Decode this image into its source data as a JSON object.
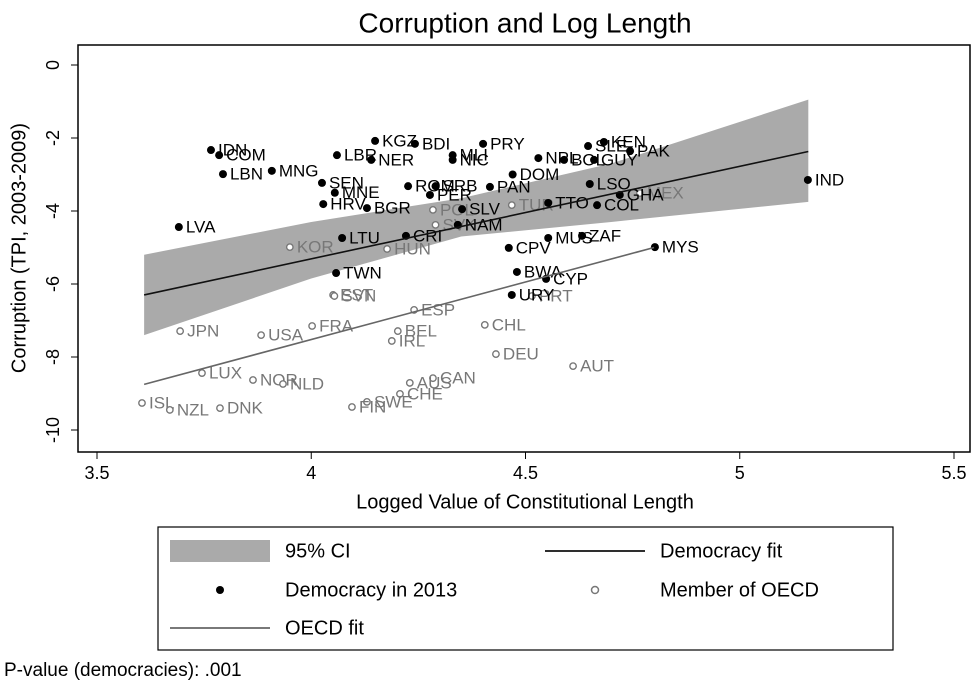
{
  "chart_data": {
    "type": "scatter",
    "title": "Corruption and Log Length",
    "x_label": "Logged Value of Constitutional Length",
    "y_label": "Corruption (TPI, 2003-2009)",
    "note": "P-value (democracies): .001",
    "xlim": [
      3.5,
      5.5
    ],
    "ylim": [
      -10,
      0
    ],
    "xticks": [
      3.5,
      4,
      4.5,
      5,
      5.5
    ],
    "yticks": [
      0,
      -2,
      -4,
      -6,
      -8,
      -10
    ],
    "series": [
      {
        "name": "95% CI",
        "style": "band",
        "color": "#aaaaaa",
        "x": [
          3.61,
          4.0,
          4.35,
          4.7,
          5.16
        ],
        "upper": [
          -5.2,
          -4.3,
          -3.65,
          -2.7,
          -0.95
        ],
        "lower": [
          -7.4,
          -5.85,
          -4.7,
          -4.3,
          -3.75
        ]
      },
      {
        "name": "Democracy fit",
        "style": "line",
        "color": "#111111",
        "x": [
          3.61,
          5.16
        ],
        "values": [
          -6.3,
          -2.37
        ]
      },
      {
        "name": "Democracy in 2013",
        "style": "point",
        "color": "#000000",
        "labels": [
          "IDN",
          "COM",
          "LBN",
          "MNG",
          "LVA",
          "KGZ",
          "BDI",
          "PRY",
          "KEN",
          "PAK",
          "SLE",
          "GUY",
          "BOL",
          "NPL",
          "LBR",
          "NER",
          "MLI",
          "NIC",
          "DOM",
          "SEN",
          "ROM",
          "SRB",
          "PAN",
          "MNE",
          "PER",
          "SLV",
          "HRV",
          "BGR",
          "LSO",
          "TTO",
          "COL",
          "GHA",
          "NAM",
          "ZAF",
          "MUS",
          "LTU",
          "CRI",
          "CPV",
          "MYS",
          "IND",
          "TWN",
          "BWA",
          "CYP",
          "URY"
        ],
        "x": [
          3.766,
          3.785,
          3.794,
          3.908,
          3.691,
          4.149,
          4.242,
          4.401,
          4.683,
          4.744,
          4.646,
          4.66,
          4.59,
          4.53,
          4.06,
          4.14,
          4.33,
          4.33,
          4.47,
          4.025,
          4.226,
          4.29,
          4.417,
          4.055,
          4.277,
          4.352,
          4.028,
          4.13,
          4.65,
          4.553,
          4.667,
          4.72,
          4.342,
          4.632,
          4.553,
          4.072,
          4.221,
          4.461,
          4.802,
          5.159,
          4.058,
          4.48,
          4.548,
          4.468
        ],
        "values": [
          -2.33,
          -2.47,
          -2.99,
          -2.9,
          -4.44,
          -2.08,
          -2.16,
          -2.16,
          -2.11,
          -2.36,
          -2.22,
          -2.6,
          -2.6,
          -2.55,
          -2.47,
          -2.6,
          -2.47,
          -2.6,
          -3.0,
          -3.23,
          -3.32,
          -3.32,
          -3.34,
          -3.5,
          -3.56,
          -3.95,
          -3.81,
          -3.92,
          -3.26,
          -3.78,
          -3.84,
          -3.56,
          -4.38,
          -4.68,
          -4.74,
          -4.74,
          -4.68,
          -5.01,
          -4.99,
          -3.15,
          -5.7,
          -5.67,
          -5.86,
          -6.3
        ]
      },
      {
        "name": "Member of OECD",
        "style": "hollow",
        "color": "#777777",
        "labels": [
          "KOR",
          "HUN",
          "POL",
          "SVK",
          "TUR",
          "MEX",
          "EST",
          "SVN",
          "PRT",
          "ESP",
          "FRA",
          "CHL",
          "BEL",
          "IRL",
          "JPN",
          "USA",
          "DEU",
          "AUT",
          "LUX",
          "NOR",
          "NLD",
          "CAN",
          "AUS",
          "CHE",
          "ISL",
          "NZL",
          "DNK",
          "SWE",
          "FIN"
        ],
        "x": [
          3.95,
          4.177,
          4.284,
          4.29,
          4.468,
          4.767,
          4.051,
          4.054,
          4.515,
          4.24,
          4.002,
          4.405,
          4.202,
          4.188,
          3.694,
          3.883,
          4.431,
          4.611,
          3.745,
          3.864,
          3.934,
          4.284,
          4.23,
          4.207,
          3.605,
          3.67,
          3.787,
          4.13,
          4.095
        ],
        "values": [
          -4.99,
          -5.04,
          -3.97,
          -4.38,
          -3.84,
          -3.51,
          -6.3,
          -6.33,
          -6.33,
          -6.71,
          -7.15,
          -7.12,
          -7.29,
          -7.56,
          -7.29,
          -7.4,
          -7.92,
          -8.25,
          -8.44,
          -8.63,
          -8.74,
          -8.58,
          -8.71,
          -9.01,
          -9.26,
          -9.45,
          -9.4,
          -9.23,
          -9.37
        ]
      },
      {
        "name": "OECD fit",
        "style": "line",
        "color": "#666666",
        "x": [
          3.61,
          4.8
        ],
        "values": [
          -8.75,
          -5.0
        ]
      }
    ]
  }
}
